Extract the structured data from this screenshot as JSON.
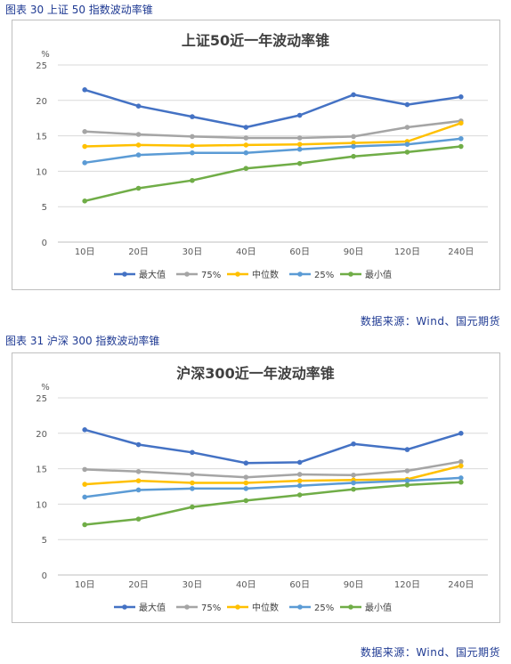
{
  "figures": [
    {
      "caption": "图表 30 上证 50 指数波动率锥",
      "source": "数据来源：Wind、国元期货",
      "chart_data": {
        "type": "line",
        "title": "上证50近一年波动率锥",
        "ylabel": "%",
        "ylim": [
          0,
          25
        ],
        "yticks": [
          0,
          5,
          10,
          15,
          20,
          25
        ],
        "categories": [
          "10日",
          "20日",
          "30日",
          "40日",
          "60日",
          "90日",
          "120日",
          "240日"
        ],
        "grid": true,
        "legend": "bottom",
        "series": [
          {
            "name": "最大值",
            "color": "#4472c4",
            "values": [
              21.5,
              19.2,
              17.7,
              16.2,
              17.9,
              20.8,
              19.4,
              20.5
            ]
          },
          {
            "name": "75%",
            "color": "#a5a5a5",
            "values": [
              15.6,
              15.2,
              14.9,
              14.7,
              14.7,
              14.9,
              16.2,
              17.1
            ]
          },
          {
            "name": "中位数",
            "color": "#ffc000",
            "values": [
              13.5,
              13.7,
              13.6,
              13.7,
              13.8,
              14.0,
              14.2,
              16.8
            ]
          },
          {
            "name": "25%",
            "color": "#5b9bd5",
            "values": [
              11.2,
              12.3,
              12.6,
              12.6,
              13.1,
              13.5,
              13.8,
              14.6
            ]
          },
          {
            "name": "最小值",
            "color": "#70ad47",
            "values": [
              5.8,
              7.6,
              8.7,
              10.4,
              11.1,
              12.1,
              12.7,
              13.5
            ]
          }
        ]
      }
    },
    {
      "caption": "图表 31 沪深 300 指数波动率锥",
      "source": "数据来源：Wind、国元期货",
      "chart_data": {
        "type": "line",
        "title": "沪深300近一年波动率锥",
        "ylabel": "%",
        "ylim": [
          0,
          25
        ],
        "yticks": [
          0,
          5,
          10,
          15,
          20,
          25
        ],
        "categories": [
          "10日",
          "20日",
          "30日",
          "40日",
          "60日",
          "90日",
          "120日",
          "240日"
        ],
        "grid": true,
        "legend": "bottom",
        "series": [
          {
            "name": "最大值",
            "color": "#4472c4",
            "values": [
              20.5,
              18.4,
              17.3,
              15.8,
              15.9,
              18.5,
              17.7,
              20.0
            ]
          },
          {
            "name": "75%",
            "color": "#a5a5a5",
            "values": [
              14.9,
              14.6,
              14.2,
              13.8,
              14.2,
              14.1,
              14.7,
              16.0
            ]
          },
          {
            "name": "中位数",
            "color": "#ffc000",
            "values": [
              12.8,
              13.3,
              13.0,
              13.0,
              13.3,
              13.4,
              13.5,
              15.4
            ]
          },
          {
            "name": "25%",
            "color": "#5b9bd5",
            "values": [
              11.0,
              12.0,
              12.2,
              12.2,
              12.6,
              13.0,
              13.3,
              13.7
            ]
          },
          {
            "name": "最小值",
            "color": "#70ad47",
            "values": [
              7.1,
              7.9,
              9.6,
              10.5,
              11.3,
              12.1,
              12.7,
              13.1
            ]
          }
        ]
      }
    }
  ]
}
